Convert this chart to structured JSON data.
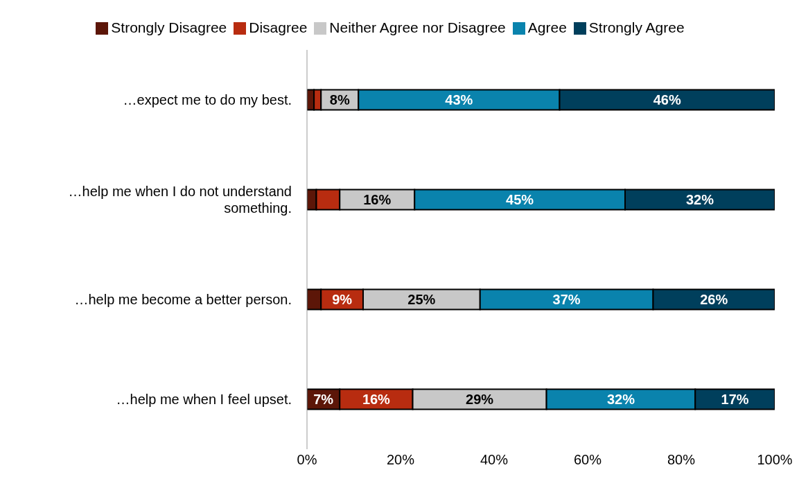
{
  "chart_data": {
    "type": "bar",
    "orientation": "horizontal",
    "stacked": true,
    "categories": [
      "…expect me to do my best.",
      "…help me when I do not understand something.",
      "…help me become a better person.",
      "…help me when I feel upset."
    ],
    "series": [
      {
        "name": "Strongly Disagree",
        "color": "#5c1608",
        "values": [
          1.5,
          2,
          3,
          7
        ],
        "value_labels": [
          null,
          null,
          null,
          "7%"
        ]
      },
      {
        "name": "Disagree",
        "color": "#b82c10",
        "values": [
          1.5,
          5,
          9,
          15.6
        ],
        "value_labels": [
          null,
          null,
          "9%",
          "16%"
        ]
      },
      {
        "name": "Neither Agree nor Disagree",
        "color": "#c8c8c8",
        "values": [
          8,
          16,
          25,
          28.6
        ],
        "value_labels": [
          "8%",
          "16%",
          "25%",
          "29%"
        ]
      },
      {
        "name": "Agree",
        "color": "#0a83ad",
        "values": [
          43,
          45,
          37,
          31.8
        ],
        "value_labels": [
          "43%",
          "45%",
          "37%",
          "32%"
        ]
      },
      {
        "name": "Strongly Agree",
        "color": "#003f5c",
        "values": [
          46,
          32,
          26,
          17
        ],
        "value_labels": [
          "46%",
          "32%",
          "26%",
          "17%"
        ]
      }
    ],
    "xlim": [
      0,
      100
    ],
    "xticks": [
      {
        "value": 0,
        "label": "0%"
      },
      {
        "value": 20,
        "label": "20%"
      },
      {
        "value": 40,
        "label": "40%"
      },
      {
        "value": 60,
        "label": "60%"
      },
      {
        "value": 80,
        "label": "80%"
      },
      {
        "value": 100,
        "label": "100%"
      }
    ],
    "grid": false,
    "legend": "top"
  }
}
